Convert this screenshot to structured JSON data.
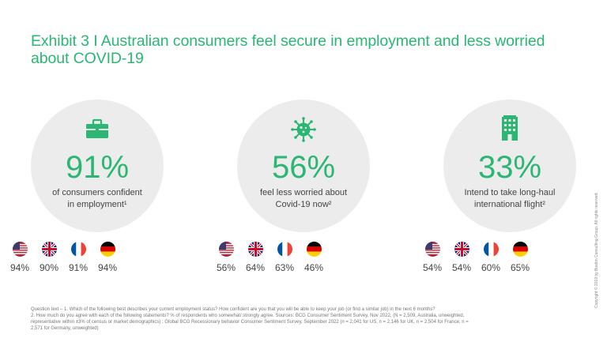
{
  "title_line1": "Exhibit 3 I Australian consumers feel secure in employment and less worried",
  "title_line2": "about COVID-19",
  "accent_color": "#2bb673",
  "circle_color": "#ececec",
  "stats": [
    {
      "icon": "briefcase-icon",
      "value": "91%",
      "line1": "of consumers confident",
      "line2": "in employment¹",
      "countries": [
        {
          "flag": "us-flag-icon",
          "pct": "94%"
        },
        {
          "flag": "uk-flag-icon",
          "pct": "90%"
        },
        {
          "flag": "france-flag-icon",
          "pct": "91%"
        },
        {
          "flag": "germany-flag-icon",
          "pct": "94%"
        }
      ]
    },
    {
      "icon": "virus-icon",
      "value": "56%",
      "line1": "feel less worried about",
      "line2": "Covid-19 now²",
      "countries": [
        {
          "flag": "us-flag-icon",
          "pct": "56%"
        },
        {
          "flag": "uk-flag-icon",
          "pct": "64%"
        },
        {
          "flag": "france-flag-icon",
          "pct": "63%"
        },
        {
          "flag": "germany-flag-icon",
          "pct": "46%"
        }
      ]
    },
    {
      "icon": "hotel-building-icon",
      "value": "33%",
      "line1": "Intend to take long-haul",
      "line2": "international flight²",
      "countries": [
        {
          "flag": "us-flag-icon",
          "pct": "54%"
        },
        {
          "flag": "uk-flag-icon",
          "pct": "54%"
        },
        {
          "flag": "france-flag-icon",
          "pct": "60%"
        },
        {
          "flag": "germany-flag-icon",
          "pct": "65%"
        }
      ]
    }
  ],
  "footer": {
    "line1": "Question text – 1. Which of the following best describes your current employment status? How confident are you that you will be able to keep your job (or find a similar job) in the next 6 months?",
    "line2": "2. How much do you agree with each of the following statements? % of respondents who somewhat/ strongly agree. Sources: BCG Consumer Sentiment Survey, Nov 2022, (N = 2,509, Australia,  unweighted,",
    "line3": "representative within ±3% of census or market demographics) ; Global BCG Recessionary behavior Consumer Sentiment Survey, September 2022 (n = 2,041 for US, n = 2,146 for UK, n = 2,504 for France, n =",
    "line4": "2,571 for Germany, unweighted)"
  },
  "copyright": "Copyright © 2019 by Boston Consulting Group. All rights reserved."
}
